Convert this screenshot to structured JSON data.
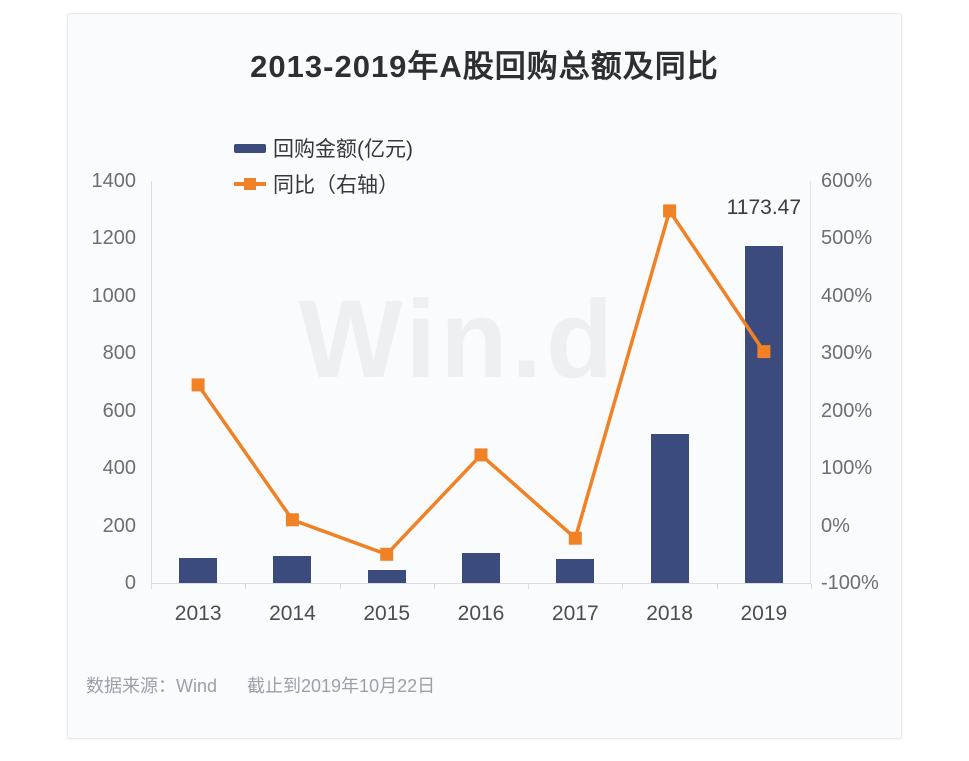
{
  "chart_data": {
    "type": "bar",
    "title": "2013-2019年A股回购总额及同比",
    "categories": [
      "2013",
      "2014",
      "2015",
      "2016",
      "2017",
      "2018",
      "2019"
    ],
    "series": [
      {
        "name": "回购金额(亿元)",
        "type": "bar",
        "axis": "left",
        "color": "#3b4b7e",
        "values": [
          86,
          94,
          47,
          105,
          83,
          520,
          1173.47
        ]
      },
      {
        "name": "同比（右轴）",
        "type": "line",
        "axis": "right",
        "unit": "%",
        "color": "#f08124",
        "values": [
          245,
          10,
          -50,
          123,
          -22,
          548,
          303
        ]
      }
    ],
    "left_axis": {
      "min": 0,
      "max": 1400,
      "step": 200,
      "ticks": [
        "1400",
        "1200",
        "1000",
        "800",
        "600",
        "400",
        "200",
        "0"
      ]
    },
    "right_axis": {
      "min": -100,
      "max": 600,
      "step": 100,
      "ticks": [
        "600%",
        "500%",
        "400%",
        "300%",
        "200%",
        "100%",
        "0%",
        "-100%"
      ]
    },
    "annotations": [
      {
        "text": "1173.47",
        "category": "2019"
      }
    ],
    "legend_position": "top-left",
    "grid": false,
    "watermark": "Win.d"
  },
  "footer": {
    "source": "数据来源：Wind",
    "note": "截止到2019年10月22日"
  }
}
